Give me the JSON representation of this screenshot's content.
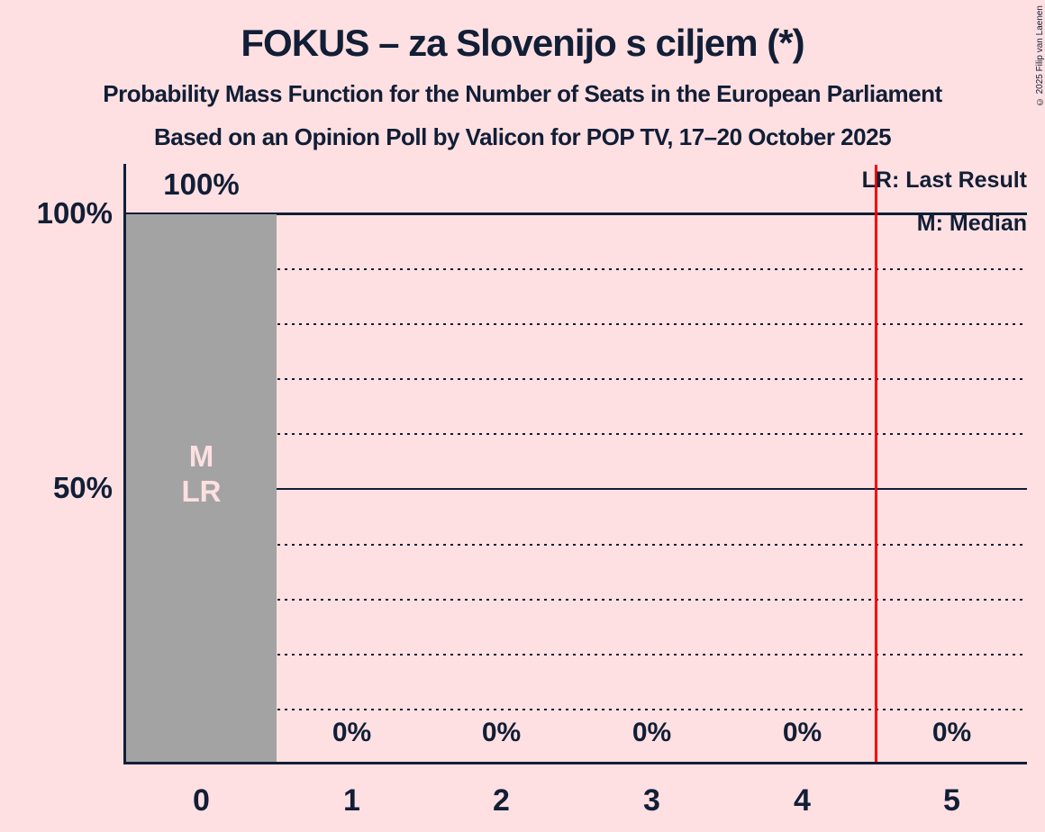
{
  "title": "FOKUS – za Slovenijo s ciljem (*)",
  "subtitle": "Probability Mass Function for the Number of Seats in the European Parliament",
  "source_line": "Based on an Opinion Poll by Valicon for POP TV, 17–20 October 2025",
  "copyright": "© 2025 Filip van Laenen",
  "legend": {
    "last_result": "LR: Last Result",
    "median": "M: Median"
  },
  "y_axis": {
    "label_100": "100%",
    "label_50": "50%"
  },
  "bar_annotations": {
    "median": "M",
    "last_result": "LR"
  },
  "colors": {
    "background": "#ffe0e2",
    "text": "#111e36",
    "bar": "#a3a3a3",
    "majority_line": "#ff0000",
    "bar_annotation_text": "#ffe0e2"
  },
  "chart_data": {
    "type": "bar",
    "title": "FOKUS – za Slovenijo s ciljem (*)",
    "categories": [
      "0",
      "1",
      "2",
      "3",
      "4",
      "5"
    ],
    "values": [
      100,
      0,
      0,
      0,
      0,
      0
    ],
    "value_labels": [
      "100%",
      "0%",
      "0%",
      "0%",
      "0%",
      "0%"
    ],
    "ylim": [
      0,
      100
    ],
    "ytick_labels": [
      "50%",
      "100%"
    ],
    "gridline_interval_pct": 10,
    "solid_gridlines_pct": [
      50,
      100
    ],
    "grid": "dotted",
    "median_seats": 0,
    "last_result_seats": 0,
    "majority_line_at_seats": 4.5,
    "legend_position": "top-right",
    "bar_color": "#a3a3a3"
  }
}
